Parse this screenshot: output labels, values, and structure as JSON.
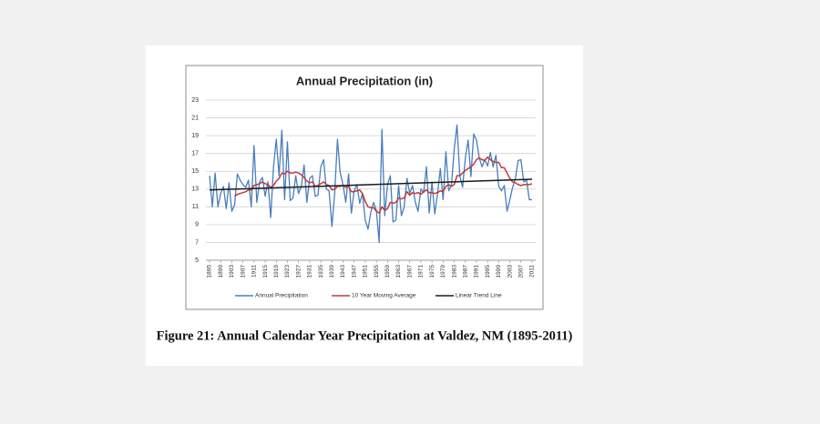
{
  "chart_data": {
    "type": "line",
    "title": "Annual Precipitation (in)",
    "x": [
      1895,
      1896,
      1897,
      1898,
      1899,
      1900,
      1901,
      1902,
      1903,
      1904,
      1905,
      1906,
      1907,
      1908,
      1909,
      1910,
      1911,
      1912,
      1913,
      1914,
      1915,
      1916,
      1917,
      1918,
      1919,
      1920,
      1921,
      1922,
      1923,
      1924,
      1925,
      1926,
      1927,
      1928,
      1929,
      1930,
      1931,
      1932,
      1933,
      1934,
      1935,
      1936,
      1937,
      1938,
      1939,
      1940,
      1941,
      1942,
      1943,
      1944,
      1945,
      1946,
      1947,
      1948,
      1949,
      1950,
      1951,
      1952,
      1953,
      1954,
      1955,
      1956,
      1957,
      1958,
      1959,
      1960,
      1961,
      1962,
      1963,
      1964,
      1965,
      1966,
      1967,
      1968,
      1969,
      1970,
      1971,
      1972,
      1973,
      1974,
      1975,
      1976,
      1977,
      1978,
      1979,
      1980,
      1981,
      1982,
      1983,
      1984,
      1985,
      1986,
      1987,
      1988,
      1989,
      1990,
      1991,
      1992,
      1993,
      1994,
      1995,
      1996,
      1997,
      1998,
      1999,
      2000,
      2001,
      2002,
      2003,
      2004,
      2005,
      2006,
      2007,
      2008,
      2009,
      2010,
      2011
    ],
    "series": [
      {
        "name": "Annual  Precipitation",
        "color": "#4a7ebb",
        "values": [
          14.5,
          11,
          14.8,
          11,
          12.5,
          13.3,
          10.8,
          13.7,
          10.5,
          11.2,
          14.7,
          14,
          13.5,
          13.2,
          14,
          11,
          17.9,
          11.5,
          13.8,
          14.3,
          12.2,
          13.8,
          9.8,
          15.5,
          18.6,
          14.5,
          19.6,
          11.8,
          18.3,
          11.7,
          12,
          14.5,
          12.5,
          13.3,
          15.7,
          11.5,
          14.2,
          14.5,
          12.2,
          12.3,
          15.5,
          16.3,
          13,
          12.8,
          8.8,
          12.5,
          18.6,
          14.8,
          13.5,
          11.5,
          14.7,
          10.3,
          12.8,
          13.5,
          11.4,
          12.5,
          9.5,
          8.5,
          10.4,
          11.5,
          10.6,
          7,
          19.7,
          10,
          13.5,
          14.5,
          9.3,
          9.5,
          13.4,
          10,
          11,
          14.2,
          12.5,
          13.4,
          11.5,
          10.5,
          13,
          12.6,
          15.5,
          10.3,
          13.8,
          10.2,
          12.5,
          15.3,
          11.8,
          17.2,
          12.8,
          13.4,
          17.5,
          20.2,
          14.5,
          13.2,
          16.5,
          18.5,
          14.4,
          19.2,
          18.5,
          16.5,
          15.5,
          16.3,
          15.6,
          17.1,
          15.5,
          16.8,
          13.3,
          12.8,
          13.4,
          10.5,
          11.8,
          13.2,
          14.2,
          16.2,
          16.3,
          13.8,
          14,
          11.8,
          11.8
        ]
      },
      {
        "name": "10 Year Moving Average",
        "color": "#c0393b",
        "values": [
          null,
          null,
          null,
          null,
          null,
          null,
          null,
          null,
          null,
          12.2,
          12.4,
          12.5,
          12.6,
          12.7,
          12.9,
          12.9,
          13.4,
          13.5,
          13.6,
          13.8,
          13.6,
          13.5,
          13.2,
          13.4,
          13.9,
          14.2,
          14.8,
          14.7,
          15.0,
          14.8,
          14.8,
          14.9,
          14.8,
          14.6,
          14.3,
          13.9,
          13.7,
          13.8,
          13.3,
          13.4,
          13.6,
          13.8,
          13.5,
          13.4,
          12.9,
          13.0,
          13.3,
          13.3,
          13.4,
          13.2,
          13.3,
          12.7,
          12.7,
          12.8,
          12.9,
          12.5,
          11.6,
          11.0,
          10.9,
          10.9,
          10.5,
          10.3,
          11.0,
          10.6,
          10.8,
          11.5,
          11.4,
          11.5,
          12.0,
          11.9,
          12.0,
          12.7,
          12.3,
          12.6,
          12.5,
          12.6,
          12.4,
          12.7,
          12.9,
          12.6,
          12.6,
          12.5,
          12.6,
          12.8,
          12.7,
          13.3,
          13.5,
          13.3,
          13.5,
          14.5,
          14.5,
          14.8,
          15.1,
          15.3,
          15.5,
          15.8,
          16.3,
          16.5,
          16.3,
          16.2,
          16.6,
          16.3,
          16.1,
          16.0,
          16.0,
          15.4,
          15.4,
          14.8,
          14.2,
          13.8,
          13.7,
          13.5,
          13.4,
          13.5,
          13.5,
          13.5,
          13.6
        ]
      },
      {
        "name": "Linear Trend Line",
        "color": "#1a1a1a",
        "x": [
          1895,
          2011
        ],
        "values": [
          12.9,
          14.1
        ]
      }
    ],
    "xlim": [
      1895,
      2011
    ],
    "xticks": [
      1895,
      1899,
      1903,
      1907,
      1911,
      1915,
      1919,
      1923,
      1927,
      1931,
      1935,
      1939,
      1943,
      1947,
      1951,
      1955,
      1959,
      1963,
      1967,
      1971,
      1975,
      1979,
      1983,
      1987,
      1991,
      1995,
      1999,
      2003,
      2007,
      2011
    ],
    "ylim": [
      5,
      23
    ],
    "yticks": [
      5,
      7,
      9,
      11,
      13,
      15,
      17,
      19,
      21,
      23
    ],
    "grid": true,
    "legend": "bottom"
  },
  "caption": "Figure 21: Annual Calendar Year Precipitation at Valdez, NM (1895-2011)"
}
